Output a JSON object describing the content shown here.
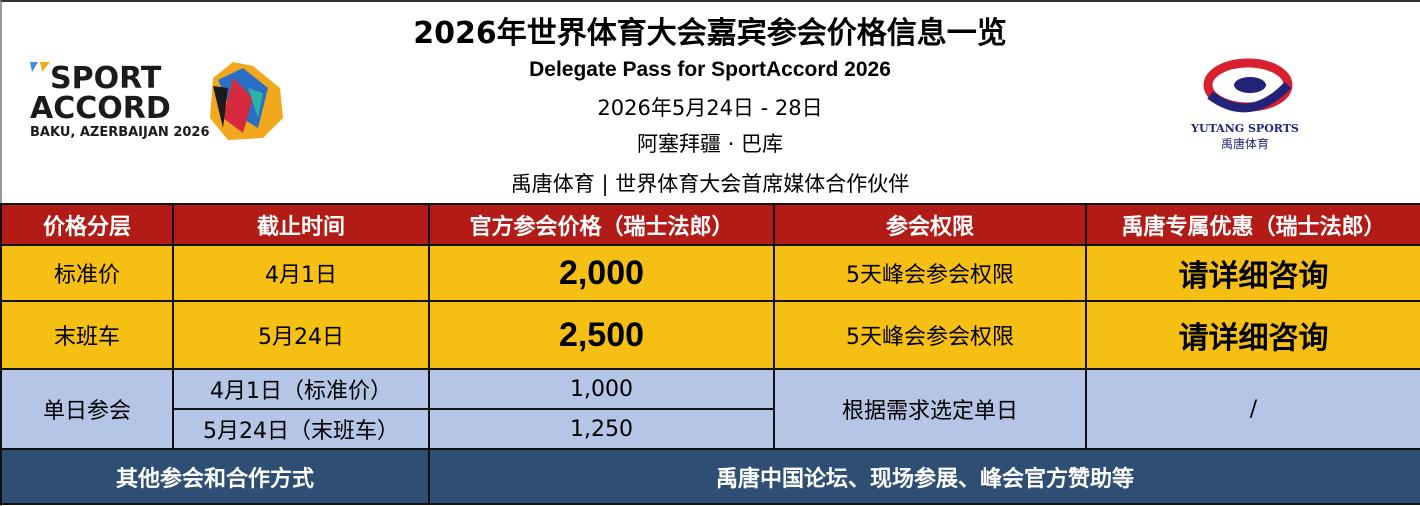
{
  "header": {
    "title": "2026年世界体育大会嘉宾参会价格信息一览",
    "subtitle_en": "Delegate Pass for SportAccord 2026",
    "dates": "2026年5月24日 - 28日",
    "location": "阿塞拜疆 · 巴库",
    "partner": "禹唐体育 | 世界体育大会首席媒体合作伙伴"
  },
  "logos": {
    "left": {
      "line1": "SPORT",
      "line2": "ACCORD",
      "line3": "BAKU, AZERBAIJAN 2026"
    },
    "right": {
      "line1": "YUTANG SPORTS",
      "line2": "禹唐体育"
    }
  },
  "table": {
    "columns": [
      "价格分层",
      "截止时间",
      "官方参会价格（瑞士法郎）",
      "参会权限",
      "禹唐专属优惠（瑞士法郎）"
    ],
    "rows": [
      {
        "tier": "标准价",
        "deadline": "4月1日",
        "price": "2,000",
        "access": "5天峰会参会权限",
        "offer": "请详细咨询"
      },
      {
        "tier": "末班车",
        "deadline": "5月24日",
        "price": "2,500",
        "access": "5天峰会参会权限",
        "offer": "请详细咨询"
      }
    ],
    "single": {
      "tier": "单日参会",
      "sub": [
        {
          "deadline": "4月1日（标准价）",
          "price": "1,000"
        },
        {
          "deadline": "5月24日（末班车）",
          "price": "1,250"
        }
      ],
      "access": "根据需求选定单日",
      "offer": "/"
    },
    "footer": {
      "label": "其他参会和合作方式",
      "value": "禹唐中国论坛、现场参展、峰会官方赞助等"
    }
  },
  "colors": {
    "header": "#b31b16",
    "tier": "#f6bf14",
    "single": "#b4c5e6",
    "footer": "#2e4e74"
  }
}
